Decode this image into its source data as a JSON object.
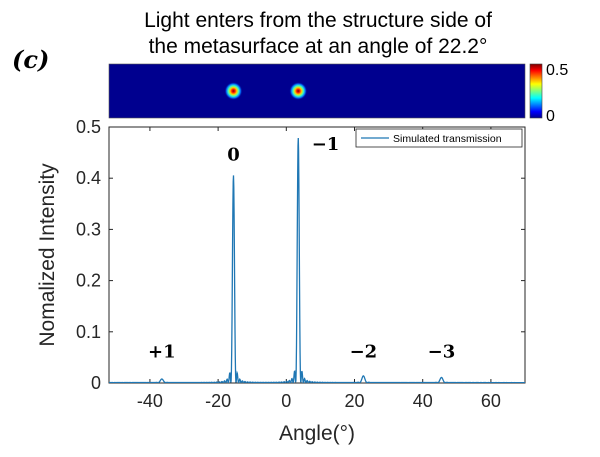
{
  "panel_label": "(c)",
  "title_line1": "Light enters from the structure side of",
  "title_line2": "the metasurface at an angle of 22.2°",
  "colorbar": {
    "max_label": "0.5",
    "min_label": "0"
  },
  "chart_data": {
    "type": "line",
    "xlabel": "Angle(°)",
    "ylabel": "Nomalized Intensity",
    "xlim": [
      -52,
      70
    ],
    "ylim": [
      0,
      0.5
    ],
    "xticks": [
      -40,
      -20,
      0,
      20,
      40,
      60
    ],
    "xtick_labels": [
      "-40",
      "-20",
      "0",
      "20",
      "40",
      "60"
    ],
    "yticks": [
      0,
      0.1,
      0.2,
      0.3,
      0.4,
      0.5
    ],
    "ytick_labels": [
      "0",
      "0.1",
      "0.2",
      "0.3",
      "0.4",
      "0.5"
    ],
    "legend": {
      "position": "top-right",
      "entries": [
        "Simulated transmission"
      ]
    },
    "color": "#1f77b4",
    "series": [
      {
        "name": "Simulated transmission",
        "peaks": [
          {
            "x": -36.5,
            "y": 0.007
          },
          {
            "x": -15.5,
            "y": 0.405
          },
          {
            "x": 3.5,
            "y": 0.478
          },
          {
            "x": 22.6,
            "y": 0.013
          },
          {
            "x": 45.5,
            "y": 0.01
          }
        ]
      }
    ],
    "annotations": [
      {
        "text": "+1",
        "x": -36.5,
        "y": 0.05
      },
      {
        "text": "0",
        "x": -15.5,
        "y": 0.435
      },
      {
        "text": "−1",
        "x": 11.5,
        "y": 0.455
      },
      {
        "text": "−2",
        "x": 22.6,
        "y": 0.05
      },
      {
        "text": "−3",
        "x": 45.5,
        "y": 0.05
      }
    ]
  },
  "heatmap": {
    "spots_x": [
      -15.5,
      3.5
    ]
  }
}
